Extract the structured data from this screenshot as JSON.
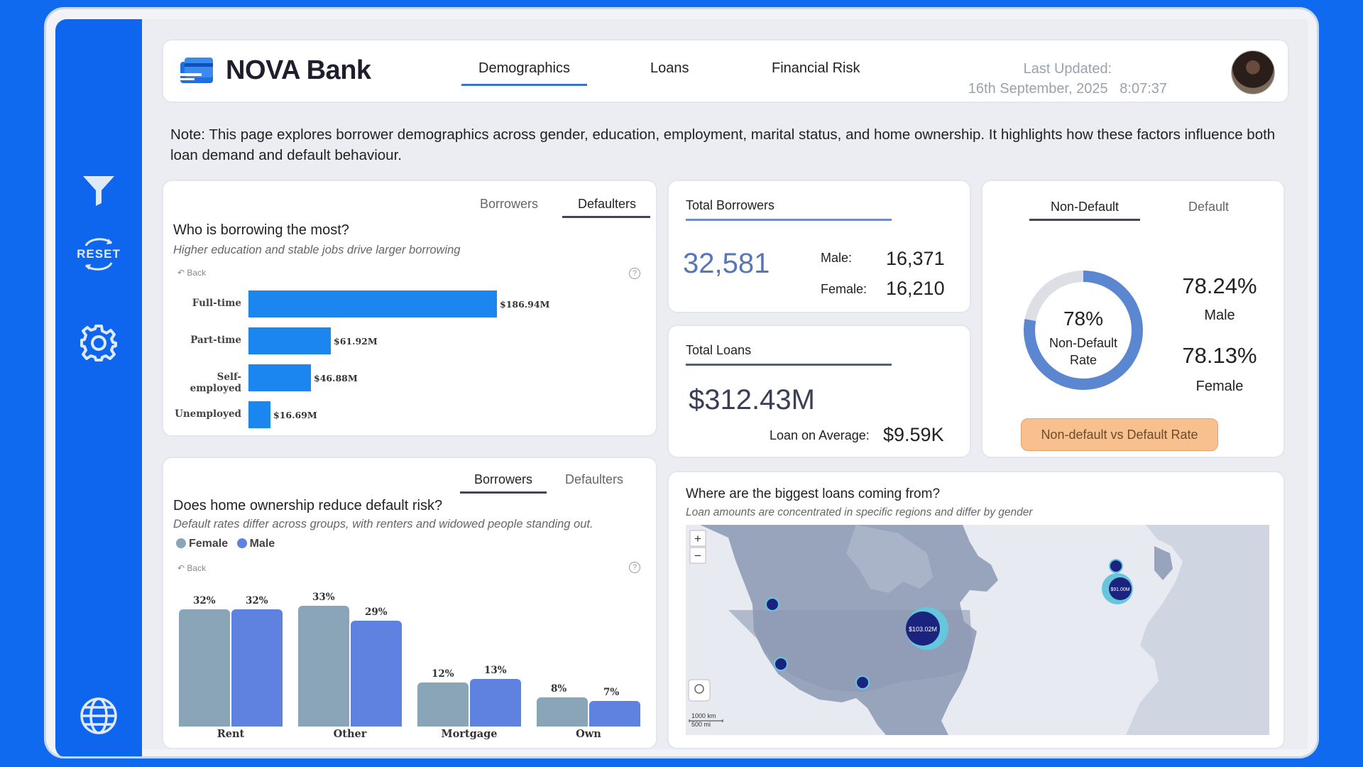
{
  "header": {
    "brand": "NOVA Bank",
    "tabs": [
      "Demographics",
      "Loans",
      "Financial Risk"
    ],
    "active_tab": "Demographics",
    "last_updated_label": "Last Updated:",
    "last_updated_value": "16th September, 2025   8:07:37"
  },
  "sidebar": {
    "icons": [
      "filter-icon",
      "reset-icon",
      "gear-icon",
      "globe-icon"
    ],
    "reset_label": "RESET"
  },
  "note": "Note: This page explores borrower demographics across gender, education, employment, marital status, and home ownership. It highlights how these factors influence both loan demand and default behaviour.",
  "borrowing": {
    "seg": [
      "Borrowers",
      "Defaulters"
    ],
    "active": "Defaulters",
    "title": "Who is borrowing the most?",
    "subtitle": "Higher education and stable jobs drive larger borrowing",
    "back": "Back",
    "help": "?",
    "chart_data": {
      "type": "bar",
      "orientation": "horizontal",
      "categories": [
        "Full-time",
        "Part-time",
        "Self-employed",
        "Unemployed"
      ],
      "values": [
        186.94,
        61.92,
        46.88,
        16.69
      ],
      "labels": [
        "$186.94M",
        "$61.92M",
        "$46.88M",
        "$16.69M"
      ],
      "color": "#1b86f0"
    }
  },
  "kpi_borrowers": {
    "title": "Total Borrowers",
    "total": "32,581",
    "male_label": "Male:",
    "male_value": "16,371",
    "female_label": "Female:",
    "female_value": "16,210"
  },
  "kpi_loans": {
    "title": "Total Loans",
    "total": "$312.43M",
    "avg_label": "Loan on Average:",
    "avg_value": "$9.59K"
  },
  "rate": {
    "seg": [
      "Non-Default",
      "Default"
    ],
    "active": "Non-Default",
    "donut_value": "78%",
    "donut_fraction": 0.78,
    "donut_label_1": "Non-Default",
    "donut_label_2": "Rate",
    "male_pct": "78.24%",
    "male_label": "Male",
    "female_pct": "78.13%",
    "female_label": "Female",
    "button": "Non-default vs Default Rate",
    "colors": {
      "ring": "#5b86d0",
      "track": "#dcdfe4",
      "button_bg": "#f8c08f",
      "button_text": "#6b4b2b"
    }
  },
  "ownership": {
    "seg": [
      "Borrowers",
      "Defaulters"
    ],
    "active": "Borrowers",
    "title": "Does home ownership reduce default risk?",
    "subtitle": "Default rates differ across groups, with renters and widowed people standing out.",
    "legend": [
      "Female",
      "Male"
    ],
    "back": "Back",
    "help": "?",
    "chart_data": {
      "type": "bar",
      "categories": [
        "Rent",
        "Other",
        "Mortgage",
        "Own"
      ],
      "series": [
        {
          "name": "Female",
          "values": [
            32,
            33,
            12,
            8
          ],
          "color": "#8aa4b8"
        },
        {
          "name": "Male",
          "values": [
            32,
            29,
            13,
            7
          ],
          "color": "#5f82e0"
        }
      ],
      "labels": [
        [
          "32%",
          "33%",
          "12%",
          "8%"
        ],
        [
          "32%",
          "29%",
          "13%",
          "7%"
        ]
      ],
      "ylim": [
        0,
        35
      ]
    }
  },
  "map": {
    "title": "Where are the biggest loans coming from?",
    "subtitle": "Loan amounts are concentrated in specific regions and differ by gender",
    "zoom_in": "+",
    "zoom_out": "−",
    "big_bubble_label": "$103.02M",
    "eu_bubble_label": "$91.00M",
    "scale_km": "1000 km",
    "scale_mi": "500 mi"
  }
}
